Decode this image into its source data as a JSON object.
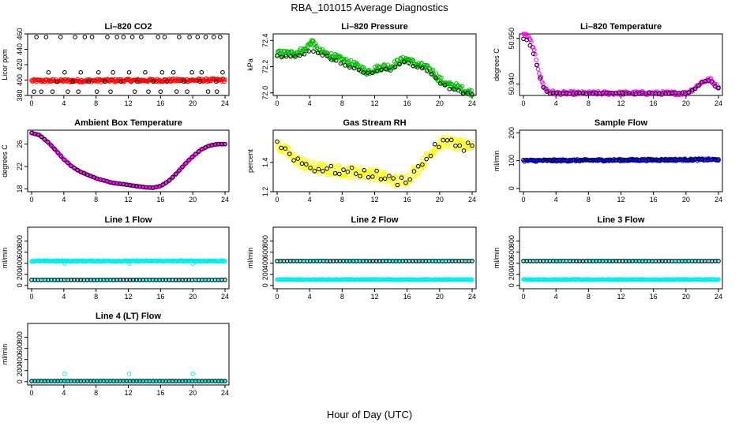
{
  "figure": {
    "title": "RBA_101015  Average Diagnostics",
    "xlabel": "Hour of Day (UTC)"
  },
  "chart_data": [
    {
      "type": "scatter",
      "title": "Li–820 CO2",
      "ylabel": "Licor ppm",
      "xlim": [
        0,
        24
      ],
      "ylim": [
        380,
        460
      ],
      "xticks": [
        "0",
        "4",
        "8",
        "12",
        "16",
        "20",
        "24"
      ],
      "yticks": [
        "380",
        "400",
        "420",
        "440",
        "460"
      ],
      "series": [
        {
          "kind": "dense",
          "color": "#ff0000",
          "x": [
            0,
            24
          ],
          "y": [
            399,
            400
          ],
          "noise": 2,
          "n": 240
        },
        {
          "kind": "points",
          "color": "#000000",
          "x": [
            0.6,
            1.8,
            3.6,
            5.4,
            6.6,
            7.5,
            9.4,
            10.6,
            11.4,
            12.5,
            13.6,
            15.7,
            16.5,
            18.3,
            19.6,
            20.6,
            21.6,
            22.6,
            23.4,
            2.1,
            4.1,
            6.1,
            8.3,
            10.1,
            12.1,
            14.1,
            16.2,
            17.6,
            19.9,
            21.1,
            23.7,
            3.1,
            5.1,
            7.1,
            9.1,
            11.1,
            13.1,
            15.1,
            16.8,
            18.9,
            20.9,
            22.9,
            0.3,
            1.2,
            2.6,
            4.5,
            5.8,
            8.1,
            9.8,
            12.8,
            14.5,
            16.0,
            18.0,
            19.3,
            21.9,
            23.0
          ],
          "y": [
            456,
            456,
            456,
            456,
            456,
            456,
            456,
            456,
            456,
            456,
            456,
            456,
            456,
            456,
            456,
            456,
            456,
            456,
            456,
            410,
            410,
            410,
            410,
            410,
            410,
            410,
            410,
            410,
            410,
            410,
            410,
            398,
            398,
            398,
            398,
            398,
            398,
            398,
            398,
            398,
            398,
            398,
            385,
            385,
            385,
            385,
            385,
            385,
            385,
            385,
            385,
            385,
            385,
            385,
            385,
            385
          ]
        }
      ]
    },
    {
      "type": "scatter",
      "title": "Li–820 Pressure",
      "ylabel": "kPa",
      "xlim": [
        0,
        24
      ],
      "ylim": [
        71.98,
        72.45
      ],
      "xticks": [
        "0",
        "4",
        "8",
        "12",
        "16",
        "20",
        "24"
      ],
      "yticks": [
        "72.0",
        "72.2",
        "72.4"
      ],
      "series": [
        {
          "kind": "curve",
          "color": "#00bb00",
          "noise": 0.025,
          "n": 260,
          "x": [
            0,
            2,
            3.5,
            4.3,
            5,
            6,
            8,
            10,
            11,
            12,
            13,
            14,
            15,
            16,
            17,
            18,
            19,
            20,
            21,
            22,
            23,
            24
          ],
          "y": [
            72.3,
            72.3,
            72.33,
            72.4,
            72.32,
            72.3,
            72.25,
            72.2,
            72.16,
            72.18,
            72.2,
            72.2,
            72.24,
            72.26,
            72.22,
            72.2,
            72.17,
            72.1,
            72.06,
            72.05,
            72.02,
            72.0
          ]
        },
        {
          "kind": "curve",
          "color": "#000000",
          "noise": 0.008,
          "n": 44,
          "x": [
            0,
            2,
            3.5,
            4.3,
            5,
            6,
            8,
            10,
            11,
            12,
            13,
            14,
            15,
            16,
            17,
            18,
            19,
            20,
            21,
            22,
            23,
            24
          ],
          "y": [
            72.28,
            72.28,
            72.3,
            72.32,
            72.3,
            72.28,
            72.22,
            72.17,
            72.15,
            72.16,
            72.18,
            72.18,
            72.22,
            72.24,
            72.2,
            72.18,
            72.14,
            72.08,
            72.04,
            72.02,
            72.0,
            71.99
          ]
        }
      ]
    },
    {
      "type": "scatter",
      "title": "Li–820 Temperature",
      "ylabel": "degrees C",
      "xlim": [
        0,
        24
      ],
      "ylim": [
        50.9375,
        50.951
      ],
      "xticks": [
        "0",
        "4",
        "8",
        "12",
        "16",
        "20",
        "24"
      ],
      "yticks": [
        "50.940",
        "50.950"
      ],
      "series": [
        {
          "kind": "curve",
          "color": "#ff00ff",
          "noise": 0.0004,
          "n": 200,
          "x": [
            0,
            0.5,
            1,
            1.5,
            2,
            2.5,
            3,
            4,
            8,
            12,
            16,
            20,
            21,
            22,
            23,
            23.8
          ],
          "y": [
            50.951,
            50.9505,
            50.949,
            50.946,
            50.942,
            50.9395,
            50.9385,
            50.938,
            50.938,
            50.938,
            50.938,
            50.938,
            50.939,
            50.9405,
            50.941,
            50.9395
          ]
        },
        {
          "kind": "curve",
          "color": "#000000",
          "noise": 0.0001,
          "n": 60,
          "x": [
            0,
            0.5,
            1,
            1.5,
            2,
            2.5,
            3,
            4,
            8,
            12,
            16,
            20,
            21,
            22,
            23,
            23.8
          ],
          "y": [
            50.95,
            50.9495,
            50.948,
            50.945,
            50.9415,
            50.939,
            50.938,
            50.938,
            50.938,
            50.938,
            50.938,
            50.938,
            50.9388,
            50.9405,
            50.9408,
            50.9392
          ]
        }
      ]
    },
    {
      "type": "scatter",
      "title": "Ambient Box Temperature",
      "ylabel": "degrees C",
      "xlim": [
        0,
        24
      ],
      "ylim": [
        17.5,
        28.5
      ],
      "xticks": [
        "0",
        "4",
        "8",
        "12",
        "16",
        "20",
        "24"
      ],
      "yticks": [
        "18",
        "22",
        "26"
      ],
      "series": [
        {
          "kind": "curve",
          "color": "#ff00ff",
          "noise": 0.05,
          "n": 200,
          "x": [
            0,
            1,
            2,
            3,
            4,
            5,
            6,
            7,
            8,
            9,
            10,
            11,
            12,
            13,
            14,
            15,
            16,
            17,
            18,
            19,
            20,
            21,
            22,
            23,
            24
          ],
          "y": [
            28.0,
            27.6,
            26.4,
            24.9,
            23.3,
            22.0,
            21.1,
            20.5,
            19.9,
            19.5,
            19.1,
            18.9,
            18.7,
            18.5,
            18.3,
            18.2,
            18.5,
            19.4,
            20.8,
            22.4,
            23.8,
            25.0,
            25.7,
            26.0,
            26.0
          ]
        },
        {
          "kind": "curve",
          "color": "#000000",
          "noise": 0.0,
          "n": 60,
          "x": [
            0,
            1,
            2,
            3,
            4,
            5,
            6,
            7,
            8,
            9,
            10,
            11,
            12,
            13,
            14,
            15,
            16,
            17,
            18,
            19,
            20,
            21,
            22,
            23,
            24
          ],
          "y": [
            28.0,
            27.6,
            26.4,
            24.9,
            23.3,
            22.0,
            21.1,
            20.5,
            19.9,
            19.5,
            19.1,
            18.9,
            18.7,
            18.5,
            18.3,
            18.2,
            18.5,
            19.4,
            20.8,
            22.4,
            23.8,
            25.0,
            25.7,
            26.0,
            26.0
          ]
        }
      ]
    },
    {
      "type": "scatter",
      "title": "Gas Stream RH",
      "ylabel": "percent",
      "xlim": [
        0,
        24
      ],
      "ylim": [
        1.2,
        1.62
      ],
      "xticks": [
        "0",
        "4",
        "8",
        "12",
        "16",
        "20",
        "24"
      ],
      "yticks": [
        "1.2",
        "1.4"
      ],
      "series": [
        {
          "kind": "curve",
          "color": "#ffff00",
          "noise": 0.04,
          "n": 260,
          "x": [
            0,
            1,
            2,
            3,
            4,
            6,
            8,
            10,
            12,
            13,
            14,
            15,
            16,
            17,
            18,
            19,
            20,
            21,
            22,
            23,
            24
          ],
          "y": [
            1.52,
            1.48,
            1.43,
            1.4,
            1.37,
            1.35,
            1.34,
            1.33,
            1.32,
            1.3,
            1.28,
            1.27,
            1.29,
            1.34,
            1.4,
            1.47,
            1.53,
            1.54,
            1.52,
            1.51,
            1.53
          ]
        },
        {
          "kind": "curve",
          "color": "#000000",
          "noise": 0.03,
          "n": 48,
          "x": [
            0,
            1,
            2,
            3,
            4,
            6,
            8,
            10,
            12,
            13,
            14,
            15,
            16,
            17,
            18,
            19,
            20,
            21,
            22,
            23,
            24
          ],
          "y": [
            1.53,
            1.49,
            1.44,
            1.4,
            1.37,
            1.35,
            1.34,
            1.33,
            1.32,
            1.3,
            1.28,
            1.27,
            1.29,
            1.34,
            1.4,
            1.47,
            1.53,
            1.54,
            1.52,
            1.51,
            1.53
          ]
        }
      ]
    },
    {
      "type": "scatter",
      "title": "Sample Flow",
      "ylabel": "ml/min",
      "xlim": [
        0,
        24
      ],
      "ylim": [
        -12,
        210
      ],
      "xticks": [
        "0",
        "4",
        "8",
        "12",
        "16",
        "20",
        "24"
      ],
      "yticks": [
        "0",
        "100",
        "200"
      ],
      "series": [
        {
          "kind": "dense",
          "color": "#0000ff",
          "x": [
            0,
            24
          ],
          "y": [
            100,
            104
          ],
          "noise": 4,
          "n": 240
        },
        {
          "kind": "dense",
          "color": "#000000",
          "x": [
            0,
            24
          ],
          "y": [
            101,
            104
          ],
          "noise": 1,
          "n": 60
        }
      ]
    },
    {
      "type": "scatter",
      "title": "Line 1 Flow",
      "ylabel": "ml/min",
      "xlim": [
        0,
        24
      ],
      "ylim": [
        -60,
        1050
      ],
      "xticks": [
        "0",
        "4",
        "8",
        "12",
        "16",
        "20",
        "24"
      ],
      "yticks": [
        "0",
        "200",
        "400",
        "600",
        "800"
      ],
      "series": [
        {
          "kind": "dense",
          "color": "#00eeee",
          "x": [
            0,
            24
          ],
          "y": [
            440,
            440
          ],
          "noise": 10,
          "n": 240
        },
        {
          "kind": "points",
          "color": "#00eeee",
          "x": [
            4.1,
            12.1,
            20.0
          ],
          "y": [
            395,
            395,
            395
          ]
        },
        {
          "kind": "dense",
          "color": "#00eeee",
          "x": [
            0,
            24
          ],
          "y": [
            100,
            100
          ],
          "noise": 4,
          "n": 120
        },
        {
          "kind": "dense",
          "color": "#000000",
          "x": [
            0,
            24
          ],
          "y": [
            100,
            100
          ],
          "noise": 0,
          "n": 60
        }
      ]
    },
    {
      "type": "scatter",
      "title": "Line 2 Flow",
      "ylabel": "ml/min",
      "xlim": [
        0,
        24
      ],
      "ylim": [
        -60,
        1050
      ],
      "xticks": [
        "0",
        "4",
        "8",
        "12",
        "16",
        "20",
        "24"
      ],
      "yticks": [
        "0",
        "200",
        "400",
        "600",
        "800"
      ],
      "series": [
        {
          "kind": "dense",
          "color": "#00eeee",
          "x": [
            0,
            24
          ],
          "y": [
            105,
            105
          ],
          "noise": 6,
          "n": 240
        },
        {
          "kind": "dense",
          "color": "#00eeee",
          "x": [
            0,
            24
          ],
          "y": [
            440,
            440
          ],
          "noise": 4,
          "n": 120
        },
        {
          "kind": "dense",
          "color": "#000000",
          "x": [
            0,
            24
          ],
          "y": [
            440,
            440
          ],
          "noise": 0,
          "n": 60
        }
      ]
    },
    {
      "type": "scatter",
      "title": "Line 3 Flow",
      "ylabel": "ml/min",
      "xlim": [
        0,
        24
      ],
      "ylim": [
        -60,
        1050
      ],
      "xticks": [
        "0",
        "4",
        "8",
        "12",
        "16",
        "20",
        "24"
      ],
      "yticks": [
        "0",
        "200",
        "400",
        "600",
        "800"
      ],
      "series": [
        {
          "kind": "dense",
          "color": "#00eeee",
          "x": [
            0,
            24
          ],
          "y": [
            105,
            105
          ],
          "noise": 6,
          "n": 240
        },
        {
          "kind": "dense",
          "color": "#00eeee",
          "x": [
            0,
            24
          ],
          "y": [
            440,
            440
          ],
          "noise": 4,
          "n": 120
        },
        {
          "kind": "dense",
          "color": "#000000",
          "x": [
            0,
            24
          ],
          "y": [
            440,
            440
          ],
          "noise": 0,
          "n": 60
        }
      ]
    },
    {
      "type": "scatter",
      "title": "Line 4 (LT) Flow",
      "ylabel": "ml/min",
      "xlim": [
        0,
        24
      ],
      "ylim": [
        -60,
        1050
      ],
      "xticks": [
        "0",
        "4",
        "8",
        "12",
        "16",
        "20",
        "24"
      ],
      "yticks": [
        "0",
        "200",
        "400",
        "600",
        "800"
      ],
      "series": [
        {
          "kind": "dense",
          "color": "#00eeee",
          "x": [
            0,
            24
          ],
          "y": [
            12,
            12
          ],
          "noise": 4,
          "n": 200
        },
        {
          "kind": "points",
          "color": "#00eeee",
          "x": [
            4.1,
            12.1,
            20.0
          ],
          "y": [
            140,
            140,
            140
          ]
        },
        {
          "kind": "dense",
          "color": "#000000",
          "x": [
            0,
            24
          ],
          "y": [
            10,
            10
          ],
          "noise": 0,
          "n": 60
        }
      ]
    }
  ]
}
